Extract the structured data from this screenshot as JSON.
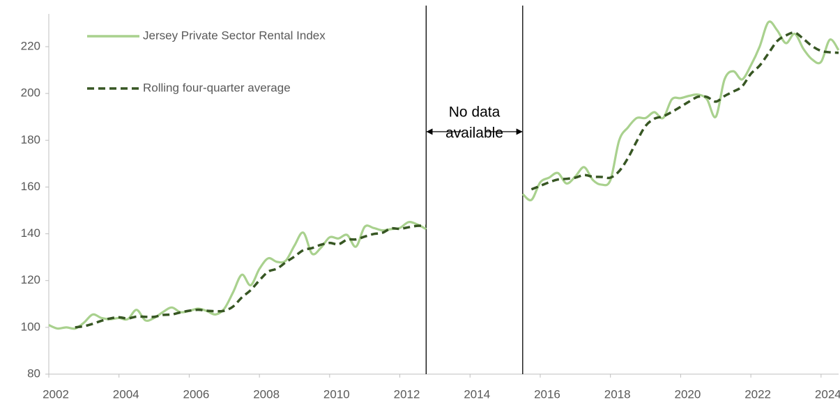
{
  "chart_data": {
    "type": "line",
    "x": [
      2002,
      2002.25,
      2002.5,
      2002.75,
      2003,
      2003.25,
      2003.5,
      2003.75,
      2004,
      2004.25,
      2004.5,
      2004.75,
      2005,
      2005.25,
      2005.5,
      2005.75,
      2006,
      2006.25,
      2006.5,
      2006.75,
      2007,
      2007.25,
      2007.5,
      2007.75,
      2008,
      2008.25,
      2008.5,
      2008.75,
      2009,
      2009.25,
      2009.5,
      2009.75,
      2010,
      2010.25,
      2010.5,
      2010.75,
      2011,
      2011.25,
      2011.5,
      2011.75,
      2012,
      2012.25,
      2012.5,
      2012.75,
      2014,
      2015.5,
      2015.75,
      2016,
      2016.25,
      2016.5,
      2016.75,
      2017,
      2017.25,
      2017.5,
      2017.75,
      2018,
      2018.25,
      2018.5,
      2018.75,
      2019,
      2019.25,
      2019.5,
      2019.75,
      2020,
      2020.25,
      2020.5,
      2020.75,
      2021,
      2021.25,
      2021.5,
      2021.75,
      2022,
      2022.25,
      2022.5,
      2022.75,
      2023,
      2023.25,
      2023.5,
      2023.75,
      2024,
      2024.25,
      2024.5
    ],
    "series": [
      {
        "name": "Jersey Private Sector Rental Index",
        "color": "#a9d18e",
        "dashed": false,
        "values": [
          101,
          99.5,
          100,
          99.5,
          102,
          105.5,
          104,
          103.5,
          104,
          103.5,
          107.5,
          103,
          104,
          106.5,
          108.5,
          106.5,
          107,
          108,
          107,
          105.5,
          108,
          115,
          122.5,
          118,
          125,
          129.5,
          128,
          128.5,
          135,
          140.5,
          131.5,
          134,
          138.5,
          138,
          139.5,
          134.5,
          143,
          142.5,
          141.5,
          142,
          142.5,
          145,
          144,
          142,
          null,
          157,
          154.5,
          162,
          164,
          166,
          161.5,
          164.5,
          168.5,
          163,
          161,
          163,
          180,
          185.5,
          189.5,
          189.5,
          192,
          189.5,
          197.5,
          198,
          199,
          199.5,
          197.5,
          190,
          206,
          209.5,
          206,
          212,
          220,
          230.5,
          227,
          221.5,
          225.5,
          219,
          214.5,
          213.5,
          223,
          218.5
        ]
      },
      {
        "name": "Rolling four-quarter average",
        "color": "#375623",
        "dashed": true,
        "values": [
          null,
          null,
          null,
          100,
          100.5,
          101.5,
          102.8,
          103.8,
          104.3,
          103.8,
          104.6,
          104.5,
          104.5,
          105.3,
          105.5,
          106.4,
          107.1,
          107.5,
          107.1,
          106.9,
          107.1,
          108.9,
          112.8,
          115.9,
          120.1,
          123.8,
          125.1,
          127.8,
          130.3,
          133,
          133.9,
          135.3,
          136.1,
          135.5,
          137.5,
          137.6,
          138.8,
          139.9,
          140.4,
          142.3,
          142.1,
          142.8,
          143.4,
          143.4,
          null,
          null,
          159,
          160.5,
          162,
          163.2,
          163.5,
          164,
          165.1,
          164.4,
          164.3,
          164,
          166.8,
          172.4,
          179.6,
          186.1,
          189.2,
          190.2,
          192.1,
          194.3,
          196.6,
          198.6,
          198.5,
          196.5,
          198.9,
          200.8,
          203,
          208.4,
          211.9,
          217.1,
          222.4,
          224.8,
          226,
          223.3,
          220.2,
          218.2,
          217.6,
          217.4
        ]
      }
    ],
    "xlim": [
      2002,
      2024.5
    ],
    "xticks": [
      2002,
      2004,
      2006,
      2008,
      2010,
      2012,
      2014,
      2016,
      2018,
      2020,
      2022,
      2024
    ],
    "ylim": [
      80,
      234
    ],
    "yticks": [
      80,
      100,
      120,
      140,
      160,
      180,
      200,
      220
    ],
    "grid": false,
    "legend": "top-left",
    "annotation_lines": [
      2012.75,
      2015.5
    ],
    "annotation_text": [
      "No data",
      "available"
    ]
  }
}
